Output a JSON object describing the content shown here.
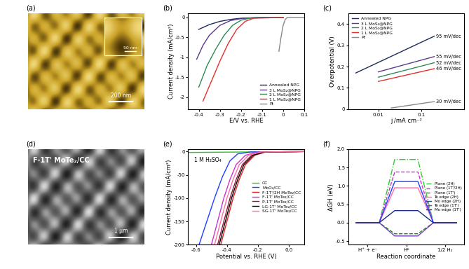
{
  "chart_data": [
    {
      "type": "image",
      "label": "(a)",
      "scale_text": "200 nm",
      "inset_scale_text": "50 nm"
    },
    {
      "type": "line",
      "label": "(b)",
      "x_label": "E/V vs. RHE",
      "y_label": "Current density (mA/cm²)",
      "xlim": [
        -0.45,
        0.1
      ],
      "xticks": [
        -0.4,
        -0.3,
        -0.2,
        -0.1,
        0,
        0.1
      ],
      "ylim": [
        -2.3,
        0.1
      ],
      "yticks": [
        -2,
        -1.5,
        -1,
        -0.5,
        0
      ],
      "legend": "lower right",
      "series": [
        {
          "name": "Annealed NPG",
          "color": "#1f2a5a",
          "x": [
            -0.4,
            -0.35,
            -0.3,
            -0.25,
            -0.2,
            -0.1,
            0
          ],
          "values": [
            -0.3,
            -0.18,
            -0.1,
            -0.05,
            -0.02,
            0,
            0
          ]
        },
        {
          "name": "3 L MoS₂@NPG",
          "color": "#5b3a8c",
          "x": [
            -0.41,
            -0.38,
            -0.35,
            -0.3,
            -0.25,
            -0.2,
            -0.1,
            0
          ],
          "values": [
            -1.05,
            -0.7,
            -0.45,
            -0.2,
            -0.08,
            -0.03,
            0,
            0
          ]
        },
        {
          "name": "2 L MoS₂@NPG",
          "color": "#2e8b57",
          "x": [
            -0.4,
            -0.36,
            -0.32,
            -0.28,
            -0.24,
            -0.2,
            -0.15,
            0
          ],
          "values": [
            -1.75,
            -1.2,
            -0.8,
            -0.45,
            -0.2,
            -0.07,
            -0.01,
            0
          ]
        },
        {
          "name": "1 L MoS₂@NPG",
          "color": "#e0302a",
          "x": [
            -0.38,
            -0.34,
            -0.3,
            -0.26,
            -0.22,
            -0.18,
            -0.14,
            0
          ],
          "values": [
            -2.1,
            -1.6,
            -1.1,
            -0.65,
            -0.3,
            -0.1,
            -0.02,
            0
          ]
        },
        {
          "name": "Pt",
          "color": "#888888",
          "x": [
            -0.02,
            -0.01,
            0,
            0.01,
            0.02,
            0.1
          ],
          "values": [
            -0.85,
            -0.5,
            -0.2,
            -0.05,
            0,
            0
          ]
        }
      ]
    },
    {
      "type": "line",
      "label": "(c)",
      "log": "x",
      "x_label": "j /mA cm⁻²",
      "y_label": "Overpotential (V)",
      "xlim": [
        0.002,
        1
      ],
      "xticks": [
        0.01,
        0.1
      ],
      "ylim": [
        0,
        0.45
      ],
      "yticks": [
        0,
        0.1,
        0.2,
        0.3,
        0.4
      ],
      "legend": "upper left",
      "series": [
        {
          "name": "Annealed NPG",
          "color": "#1f2a5a",
          "x": [
            0.003,
            0.2
          ],
          "values": [
            0.17,
            0.343
          ],
          "annotation": "95 mV/dec"
        },
        {
          "name": "3 L MoS₂@NPG",
          "color": "#5b3a8c",
          "x": [
            0.01,
            0.2
          ],
          "values": [
            0.175,
            0.247
          ],
          "annotation": "55 mV/dec"
        },
        {
          "name": "2 L MoS₂@NPG",
          "color": "#2e8b57",
          "x": [
            0.01,
            0.2
          ],
          "values": [
            0.15,
            0.218
          ],
          "annotation": "52 mV/dec"
        },
        {
          "name": "1 L MoS₂@NPG",
          "color": "#e0302a",
          "x": [
            0.01,
            0.2
          ],
          "values": [
            0.13,
            0.19
          ],
          "annotation": "46 mV/dec"
        },
        {
          "name": "Pt",
          "color": "#888888",
          "x": [
            0.02,
            0.2
          ],
          "values": [
            0.005,
            0.035
          ],
          "annotation": "30 mV/dec"
        }
      ]
    },
    {
      "type": "image",
      "label": "(d)",
      "title": "F-1T' MoTe₂/CC",
      "scale_text": "1 μm"
    },
    {
      "type": "line",
      "label": "(e)",
      "x_label": "Potential vs. RHE (V)",
      "y_label": "Current density (mA/cm²)",
      "annotation": "1 M H₂SO₄",
      "xlim": [
        -0.65,
        0.1
      ],
      "xticks": [
        -0.6,
        -0.4,
        -0.2,
        {
          "value": 0,
          "label": "0.0"
        }
      ],
      "ylim": [
        -200,
        5
      ],
      "yticks": [
        -200,
        -150,
        -100,
        -50,
        0
      ],
      "legend": "center right",
      "series": [
        {
          "name": "CC",
          "color": "#22cc22",
          "x": [
            -0.65,
            0.1
          ],
          "values": [
            -2,
            0
          ]
        },
        {
          "name": "MoO₂/CC",
          "color": "#1f3fff",
          "x": [
            -0.58,
            -0.53,
            -0.48,
            -0.43,
            -0.38,
            -0.33,
            -0.25,
            0.1
          ],
          "values": [
            -200,
            -150,
            -100,
            -55,
            -20,
            -5,
            -1,
            0
          ]
        },
        {
          "name": "F-1T'/2H MoTe₂/CC",
          "color": "#e02020",
          "x": [
            -0.44,
            -0.4,
            -0.36,
            -0.32,
            -0.28,
            -0.22,
            -0.15,
            0.1
          ],
          "values": [
            -200,
            -150,
            -100,
            -60,
            -28,
            -8,
            -1,
            0
          ]
        },
        {
          "name": "F-1T' MoTe₂/CC",
          "color": "#cc33cc",
          "x": [
            -0.5,
            -0.46,
            -0.42,
            -0.38,
            -0.34,
            -0.28,
            -0.2,
            0.1
          ],
          "values": [
            -200,
            -150,
            -100,
            -60,
            -28,
            -8,
            -1,
            0
          ]
        },
        {
          "name": "P-1T' MoTe₂/CC",
          "color": "#8b1a3a",
          "x": [
            -0.46,
            -0.42,
            -0.38,
            -0.34,
            -0.3,
            -0.24,
            -0.17,
            0.1
          ],
          "values": [
            -200,
            -150,
            -100,
            -60,
            -28,
            -8,
            -1,
            0
          ]
        },
        {
          "name": "LG-1T' MoTe₂/CC",
          "color": "#000000",
          "x": [
            -0.45,
            -0.41,
            -0.37,
            -0.33,
            -0.29,
            -0.23,
            -0.16,
            0.1
          ],
          "values": [
            -200,
            -150,
            -100,
            -60,
            -28,
            -8,
            -1,
            0
          ]
        },
        {
          "name": "SG-1T' MoTe₂/CC",
          "color": "#ff6fa8",
          "x": [
            -0.48,
            -0.44,
            -0.4,
            -0.36,
            -0.32,
            -0.26,
            -0.18,
            0.1
          ],
          "values": [
            -200,
            -150,
            -100,
            -60,
            -28,
            -8,
            -1,
            0
          ]
        }
      ]
    },
    {
      "type": "energy_diagram",
      "label": "(f)",
      "x_label": "Reaction coordinate",
      "y_label": "ΔGH (eV)",
      "categories": [
        "H⁺ + e⁻",
        "H*",
        "1/2 H₂"
      ],
      "ylim": [
        -0.6,
        2.0
      ],
      "yticks": [
        -0.5,
        {
          "value": 0,
          "label": "0.0"
        },
        0.5,
        {
          "value": 1,
          "label": "1.0"
        },
        1.5,
        {
          "value": 2,
          "label": "2.0"
        }
      ],
      "legend": "center right",
      "series": [
        {
          "name": "Plane (2H)",
          "color": "#33cc33",
          "line_style": "dashdot",
          "values": [
            0,
            1.72,
            0
          ]
        },
        {
          "name": "Plane (1T'/2H)",
          "color": "#cc33cc",
          "line_style": "dashed",
          "values": [
            0,
            1.38,
            0
          ]
        },
        {
          "name": "Plane (1T')",
          "color": "#1a8a1a",
          "line_style": "dashed",
          "values": [
            0,
            -0.3,
            0
          ]
        },
        {
          "name": "Te edge (2H)",
          "color": "#ff6fa8",
          "line_style": "solid",
          "values": [
            0,
            0.95,
            0
          ]
        },
        {
          "name": "Mo edge (2H)",
          "color": "#1f3fff",
          "line_style": "solid",
          "values": [
            0,
            1.12,
            0
          ]
        },
        {
          "name": "Te edge (1T')",
          "color": "#7a3fbf",
          "line_style": "solid",
          "values": [
            0,
            -0.36,
            0
          ]
        },
        {
          "name": "Mo edge (1T')",
          "color": "#1a2a8a",
          "line_style": "solid",
          "values": [
            0,
            0.33,
            0
          ]
        }
      ]
    }
  ]
}
